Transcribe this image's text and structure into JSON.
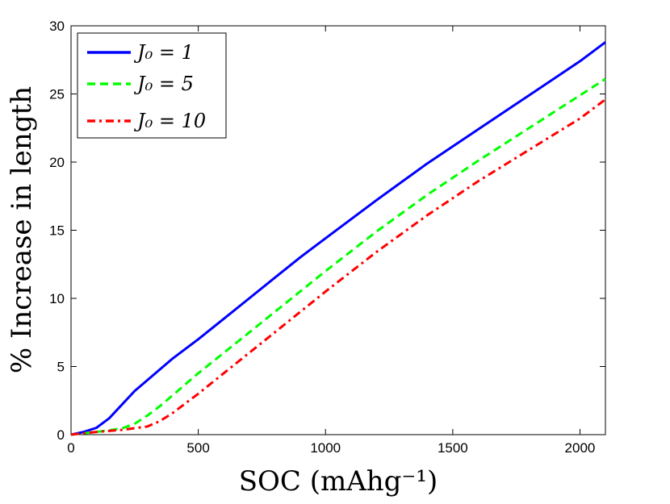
{
  "chart_data": {
    "type": "line",
    "title": "",
    "xlabel": "SOC (mAhg⁻¹)",
    "ylabel": "% Increase in length",
    "xlim": [
      0,
      2100
    ],
    "ylim": [
      0,
      30
    ],
    "xticks": [
      "0",
      "500",
      "1000",
      "1500",
      "2000"
    ],
    "yticks": [
      "0",
      "5",
      "10",
      "15",
      "20",
      "25",
      "30"
    ],
    "grid": false,
    "legend_position": "top-left",
    "series": [
      {
        "name": "J₀ = 1",
        "color": "#0000ff",
        "style": "solid",
        "x": [
          0,
          50,
          100,
          150,
          200,
          250,
          300,
          400,
          500,
          600,
          700,
          800,
          900,
          1000,
          1200,
          1400,
          1600,
          1800,
          2000,
          2100
        ],
        "y": [
          0,
          0.2,
          0.5,
          1.2,
          2.2,
          3.2,
          4.0,
          5.6,
          7.0,
          8.5,
          10.0,
          11.5,
          13.0,
          14.4,
          17.2,
          19.9,
          22.4,
          24.9,
          27.4,
          28.8
        ]
      },
      {
        "name": "J₀ = 5",
        "color": "#00ff00",
        "style": "dashed",
        "x": [
          0,
          100,
          200,
          250,
          300,
          350,
          400,
          500,
          600,
          700,
          800,
          900,
          1000,
          1200,
          1400,
          1600,
          1800,
          2000,
          2100
        ],
        "y": [
          0,
          0.2,
          0.45,
          0.8,
          1.4,
          2.1,
          2.9,
          4.5,
          6.0,
          7.5,
          9.0,
          10.5,
          12.0,
          14.9,
          17.6,
          20.1,
          22.5,
          24.9,
          26.1
        ]
      },
      {
        "name": "J₀ = 10",
        "color": "#ff0000",
        "style": "dashdot",
        "x": [
          0,
          100,
          200,
          300,
          350,
          400,
          450,
          500,
          600,
          700,
          800,
          900,
          1000,
          1200,
          1400,
          1600,
          1800,
          2000,
          2100
        ],
        "y": [
          0,
          0.2,
          0.35,
          0.6,
          1.0,
          1.6,
          2.3,
          3.0,
          4.5,
          6.0,
          7.5,
          9.0,
          10.5,
          13.4,
          16.1,
          18.6,
          20.9,
          23.2,
          24.6
        ]
      }
    ]
  }
}
